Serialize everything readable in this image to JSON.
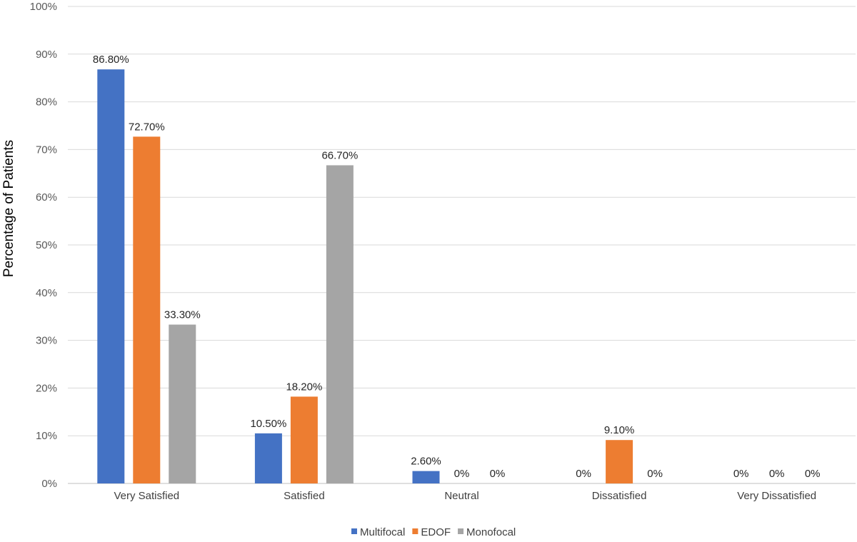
{
  "chart_data": {
    "type": "bar",
    "title": "",
    "xlabel": "",
    "ylabel": "Percentage of Patients",
    "ylim": [
      0,
      100
    ],
    "yticks": [
      0,
      10,
      20,
      30,
      40,
      50,
      60,
      70,
      80,
      90,
      100
    ],
    "ytick_labels": [
      "0%",
      "10%",
      "20%",
      "30%",
      "40%",
      "50%",
      "60%",
      "70%",
      "80%",
      "90%",
      "100%"
    ],
    "categories": [
      "Very Satisfied",
      "Satisfied",
      "Neutral",
      "Dissatisfied",
      "Very Dissatisfied"
    ],
    "series": [
      {
        "name": "Multifocal",
        "color": "#4472C4",
        "values": [
          86.8,
          10.5,
          2.6,
          0,
          0
        ],
        "labels": [
          "86.80%",
          "10.50%",
          "2.60%",
          "0%",
          "0%"
        ]
      },
      {
        "name": "EDOF",
        "color": "#ED7D31",
        "values": [
          72.7,
          18.2,
          0,
          9.1,
          0
        ],
        "labels": [
          "72.70%",
          "18.20%",
          "0%",
          "9.10%",
          "0%"
        ]
      },
      {
        "name": "Monofocal",
        "color": "#A5A5A5",
        "values": [
          33.3,
          66.7,
          0,
          0,
          0
        ],
        "labels": [
          "33.30%",
          "66.70%",
          "0%",
          "0%",
          "0%"
        ]
      }
    ],
    "grid": true,
    "legend_position": "bottom"
  }
}
